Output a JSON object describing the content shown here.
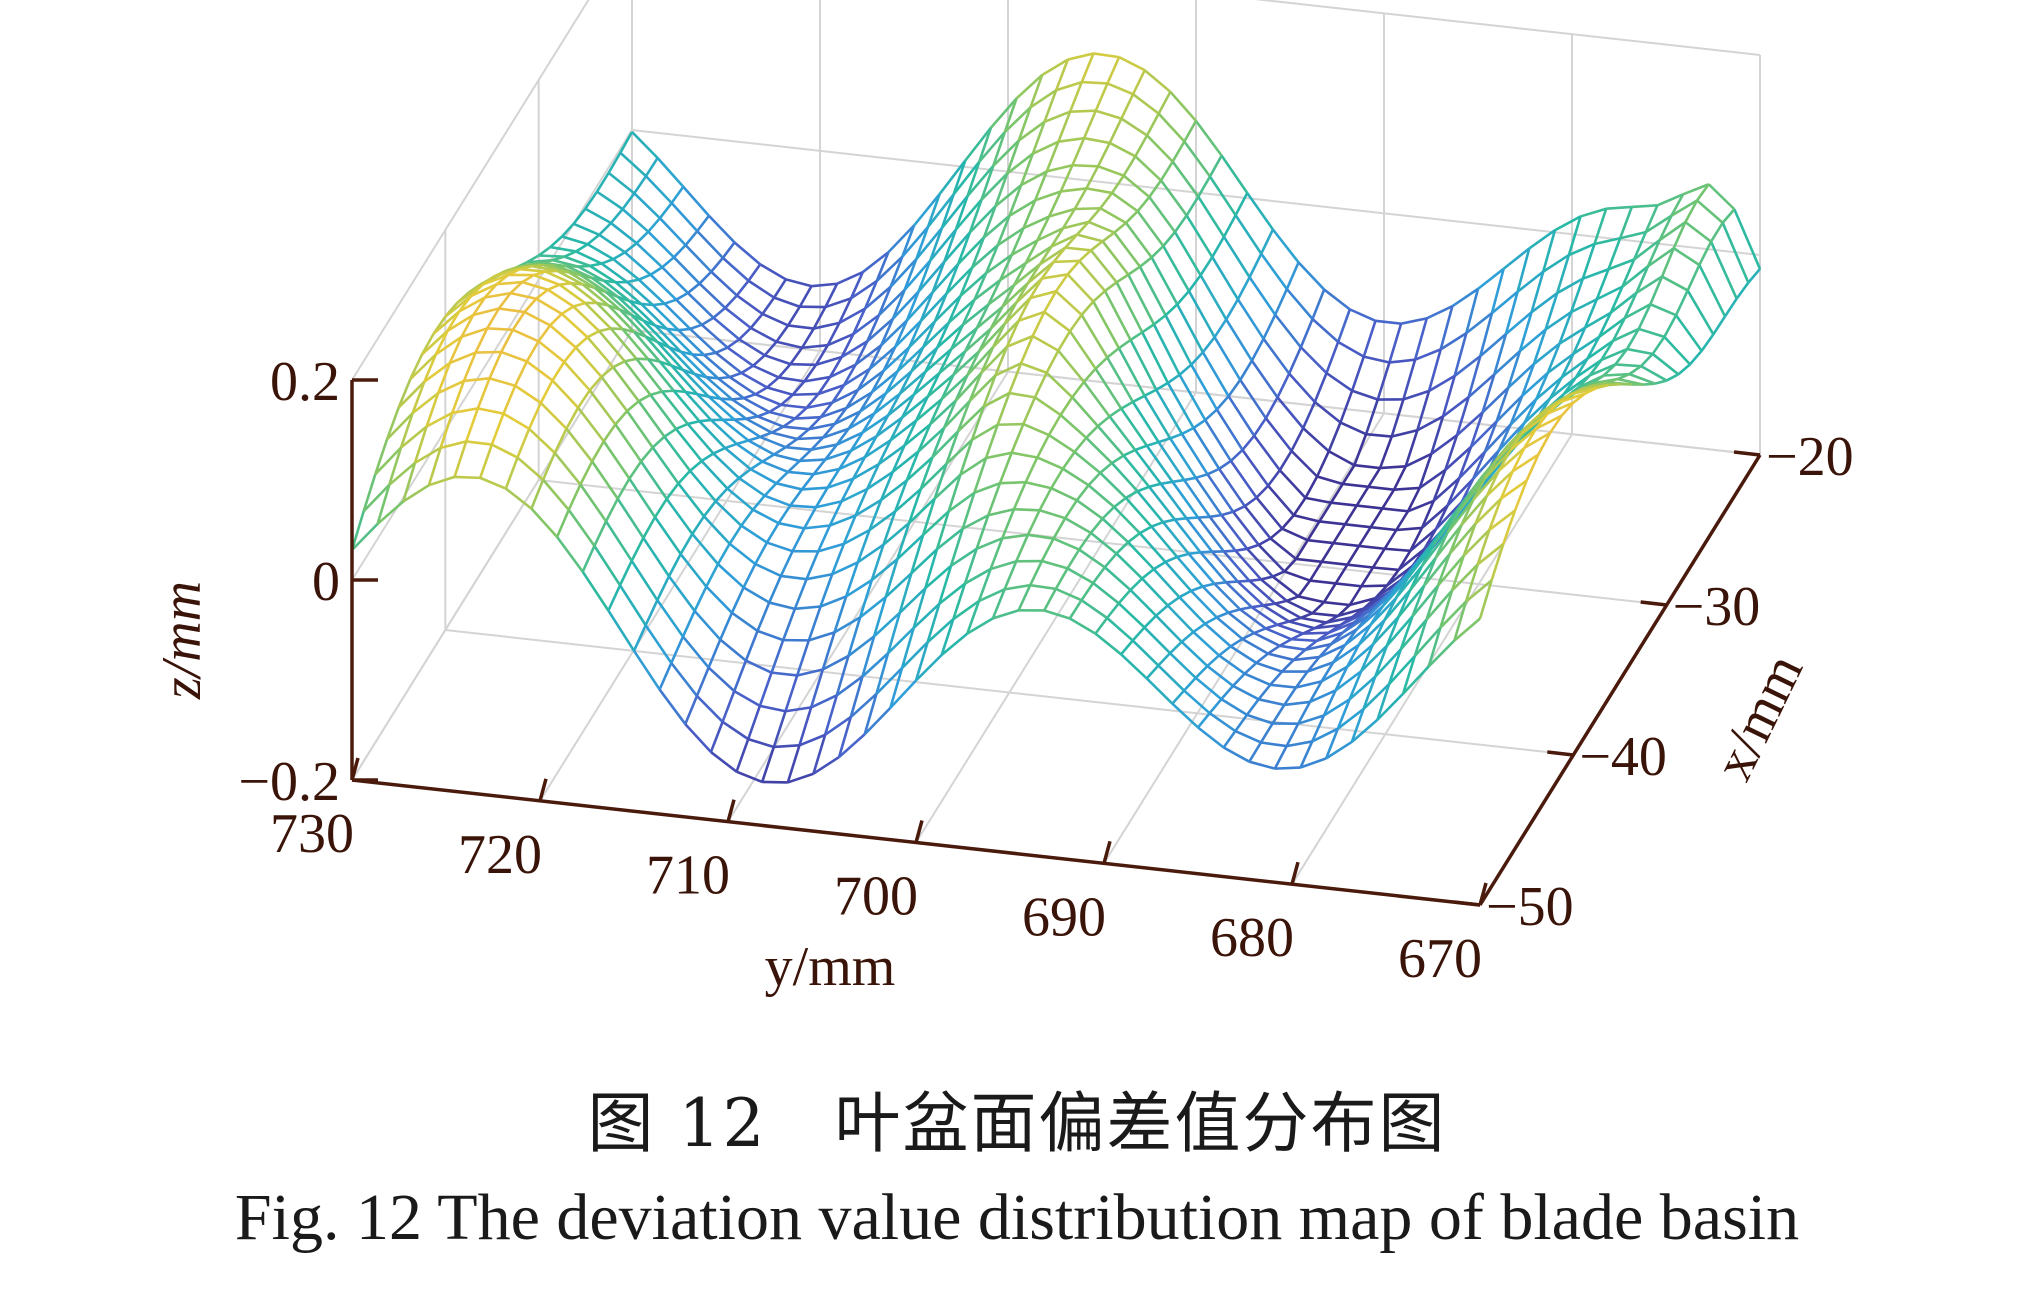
{
  "chart_data": {
    "type": "surface",
    "x_label": "x/mm",
    "y_label": "y/mm",
    "z_label": "z/mm",
    "x_ticks": [
      -20,
      -30,
      -40,
      -50
    ],
    "y_ticks": [
      730,
      720,
      710,
      700,
      690,
      680,
      670
    ],
    "z_ticks": [
      0.2,
      0,
      -0.2
    ],
    "x_range": [
      -50,
      -20
    ],
    "y_range": [
      670,
      730
    ],
    "z_range": [
      -0.2,
      0.2
    ],
    "grid": true,
    "colormap": [
      "#3b2f8f",
      "#4a5ec9",
      "#2f9fd8",
      "#27b9a6",
      "#7cc56a",
      "#e2cc3a",
      "#f5b24a"
    ],
    "surface_summary": "Wavy deviation surface with alternating ridges (~0.05 to 0.15 mm) and valleys (~-0.15 mm) along y; highest peaks near y≈700 and y≈672"
  },
  "caption": {
    "cn": "图 12　叶盆面偏差值分布图",
    "en": "Fig. 12   The deviation value distribution map of blade basin"
  }
}
